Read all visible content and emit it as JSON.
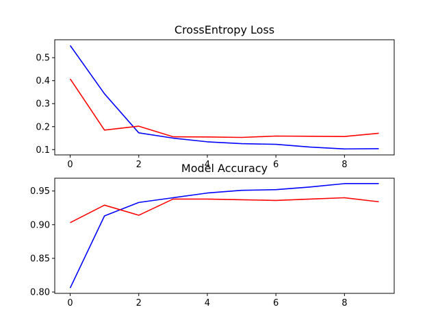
{
  "chart_data": [
    {
      "type": "line",
      "title": "CrossEntropy Loss",
      "xlabel": "",
      "ylabel": "",
      "x": [
        0,
        1,
        2,
        3,
        4,
        5,
        6,
        7,
        8,
        9
      ],
      "xlim": [
        -0.45,
        9.45
      ],
      "ylim": [
        0.077,
        0.578
      ],
      "xticks": [
        0,
        2,
        4,
        6,
        8
      ],
      "yticks": [
        0.1,
        0.2,
        0.3,
        0.4,
        0.5
      ],
      "grid": false,
      "series": [
        {
          "color": "#0000ff",
          "values": [
            0.553,
            0.343,
            0.173,
            0.15,
            0.134,
            0.126,
            0.123,
            0.111,
            0.103,
            0.104
          ]
        },
        {
          "color": "#ff0000",
          "values": [
            0.408,
            0.185,
            0.202,
            0.156,
            0.155,
            0.153,
            0.159,
            0.158,
            0.157,
            0.171
          ]
        }
      ]
    },
    {
      "type": "line",
      "title": "Model Accuracy",
      "xlabel": "",
      "ylabel": "",
      "x": [
        0,
        1,
        2,
        3,
        4,
        5,
        6,
        7,
        8,
        9
      ],
      "xlim": [
        -0.45,
        9.45
      ],
      "ylim": [
        0.798,
        0.969
      ],
      "xticks": [
        0,
        2,
        4,
        6,
        8
      ],
      "yticks": [
        0.8,
        0.85,
        0.9,
        0.95
      ],
      "grid": false,
      "series": [
        {
          "color": "#0000ff",
          "values": [
            0.806,
            0.913,
            0.933,
            0.94,
            0.947,
            0.951,
            0.952,
            0.956,
            0.961,
            0.961
          ]
        },
        {
          "color": "#ff0000",
          "values": [
            0.903,
            0.929,
            0.914,
            0.938,
            0.938,
            0.937,
            0.936,
            0.938,
            0.94,
            0.934
          ]
        }
      ]
    }
  ]
}
